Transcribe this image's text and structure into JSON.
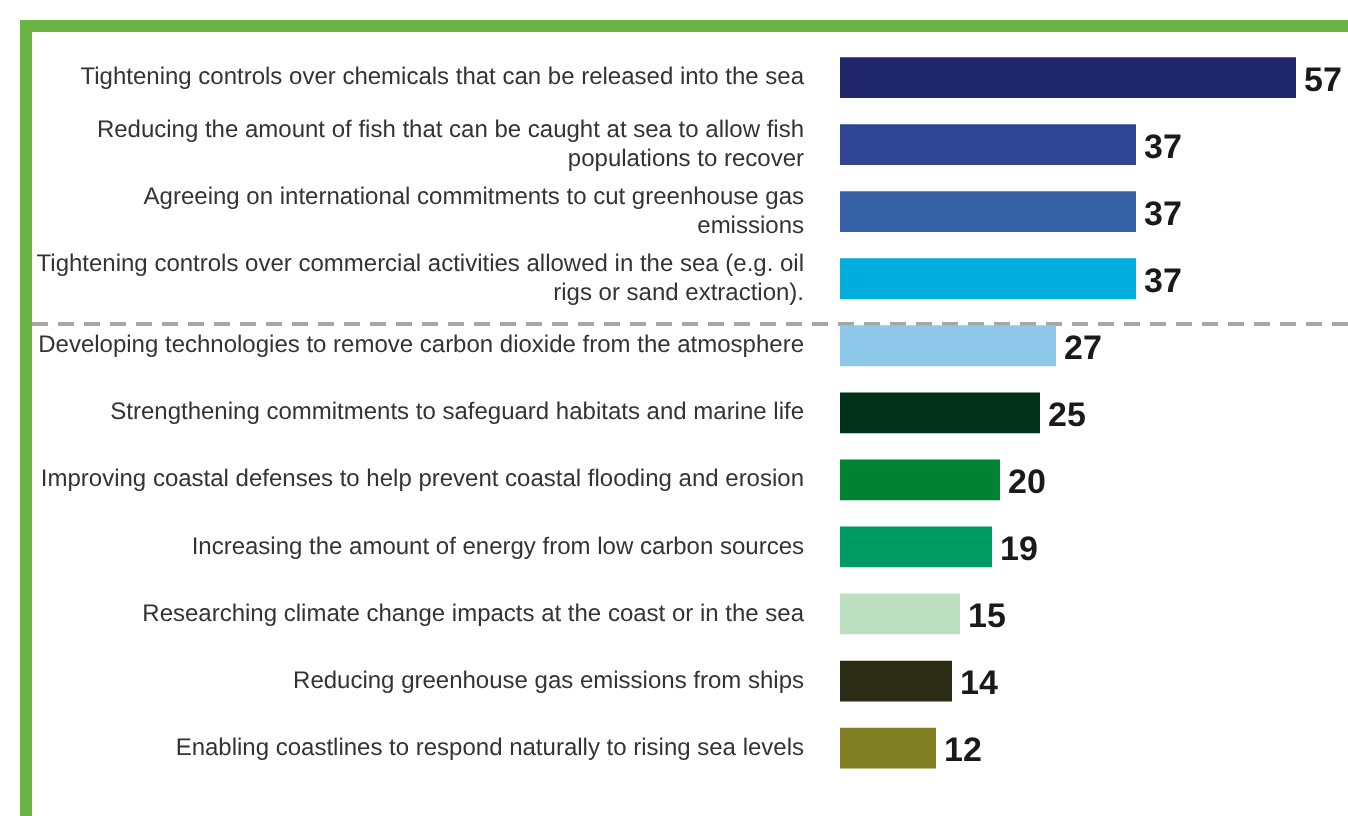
{
  "chart_data": {
    "type": "bar",
    "orientation": "horizontal",
    "data_labels": true,
    "categories": [
      "Tightening controls over chemicals that can be released into the sea",
      "Reducing the amount of fish that can be caught at sea to allow fish populations to recover",
      "Agreeing on international commitments to cut greenhouse gas emissions",
      "Tightening controls over commercial activities allowed in the sea (e.g. oil rigs or sand extraction).",
      "Developing technologies to remove carbon dioxide from the atmosphere",
      "Strengthening commitments to safeguard habitats and marine life",
      "Improving coastal defenses to help prevent coastal flooding and erosion",
      "Increasing the amount of energy from low carbon sources",
      "Researching climate change impacts at the coast or in the sea",
      "Reducing greenhouse gas emissions from ships",
      "Enabling coastlines to respond naturally to rising sea levels"
    ],
    "values": [
      57,
      37,
      37,
      37,
      27,
      25,
      20,
      19,
      15,
      14,
      12
    ],
    "colors": [
      "#20266a",
      "#2f4593",
      "#3762a8",
      "#00aede",
      "#8ec8ea",
      "#00321a",
      "#008233",
      "#009a64",
      "#bcdfbf",
      "#2c2c14",
      "#7f8023"
    ]
  }
}
